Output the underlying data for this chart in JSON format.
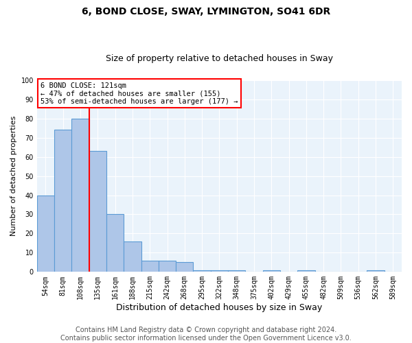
{
  "title": "6, BOND CLOSE, SWAY, LYMINGTON, SO41 6DR",
  "subtitle": "Size of property relative to detached houses in Sway",
  "xlabel": "Distribution of detached houses by size in Sway",
  "ylabel": "Number of detached properties",
  "bin_labels": [
    "54sqm",
    "81sqm",
    "108sqm",
    "135sqm",
    "161sqm",
    "188sqm",
    "215sqm",
    "242sqm",
    "268sqm",
    "295sqm",
    "322sqm",
    "348sqm",
    "375sqm",
    "402sqm",
    "429sqm",
    "455sqm",
    "482sqm",
    "509sqm",
    "536sqm",
    "562sqm",
    "589sqm"
  ],
  "bar_heights": [
    40,
    74,
    80,
    63,
    30,
    16,
    6,
    6,
    5,
    1,
    1,
    1,
    0,
    1,
    0,
    1,
    0,
    0,
    0,
    1,
    0
  ],
  "bar_color": "#aec6e8",
  "bar_edge_color": "#5b9bd5",
  "vline_x_index": 2.5,
  "vline_color": "red",
  "annotation_text": "6 BOND CLOSE: 121sqm\n← 47% of detached houses are smaller (155)\n53% of semi-detached houses are larger (177) →",
  "annotation_box_color": "white",
  "annotation_box_edge_color": "red",
  "ylim": [
    0,
    100
  ],
  "yticks": [
    0,
    10,
    20,
    30,
    40,
    50,
    60,
    70,
    80,
    90,
    100
  ],
  "footer": "Contains HM Land Registry data © Crown copyright and database right 2024.\nContains public sector information licensed under the Open Government Licence v3.0.",
  "background_color": "#eaf3fb",
  "grid_color": "#ffffff",
  "title_fontsize": 10,
  "subtitle_fontsize": 9,
  "xlabel_fontsize": 9,
  "ylabel_fontsize": 8,
  "footer_fontsize": 7,
  "tick_fontsize": 7
}
